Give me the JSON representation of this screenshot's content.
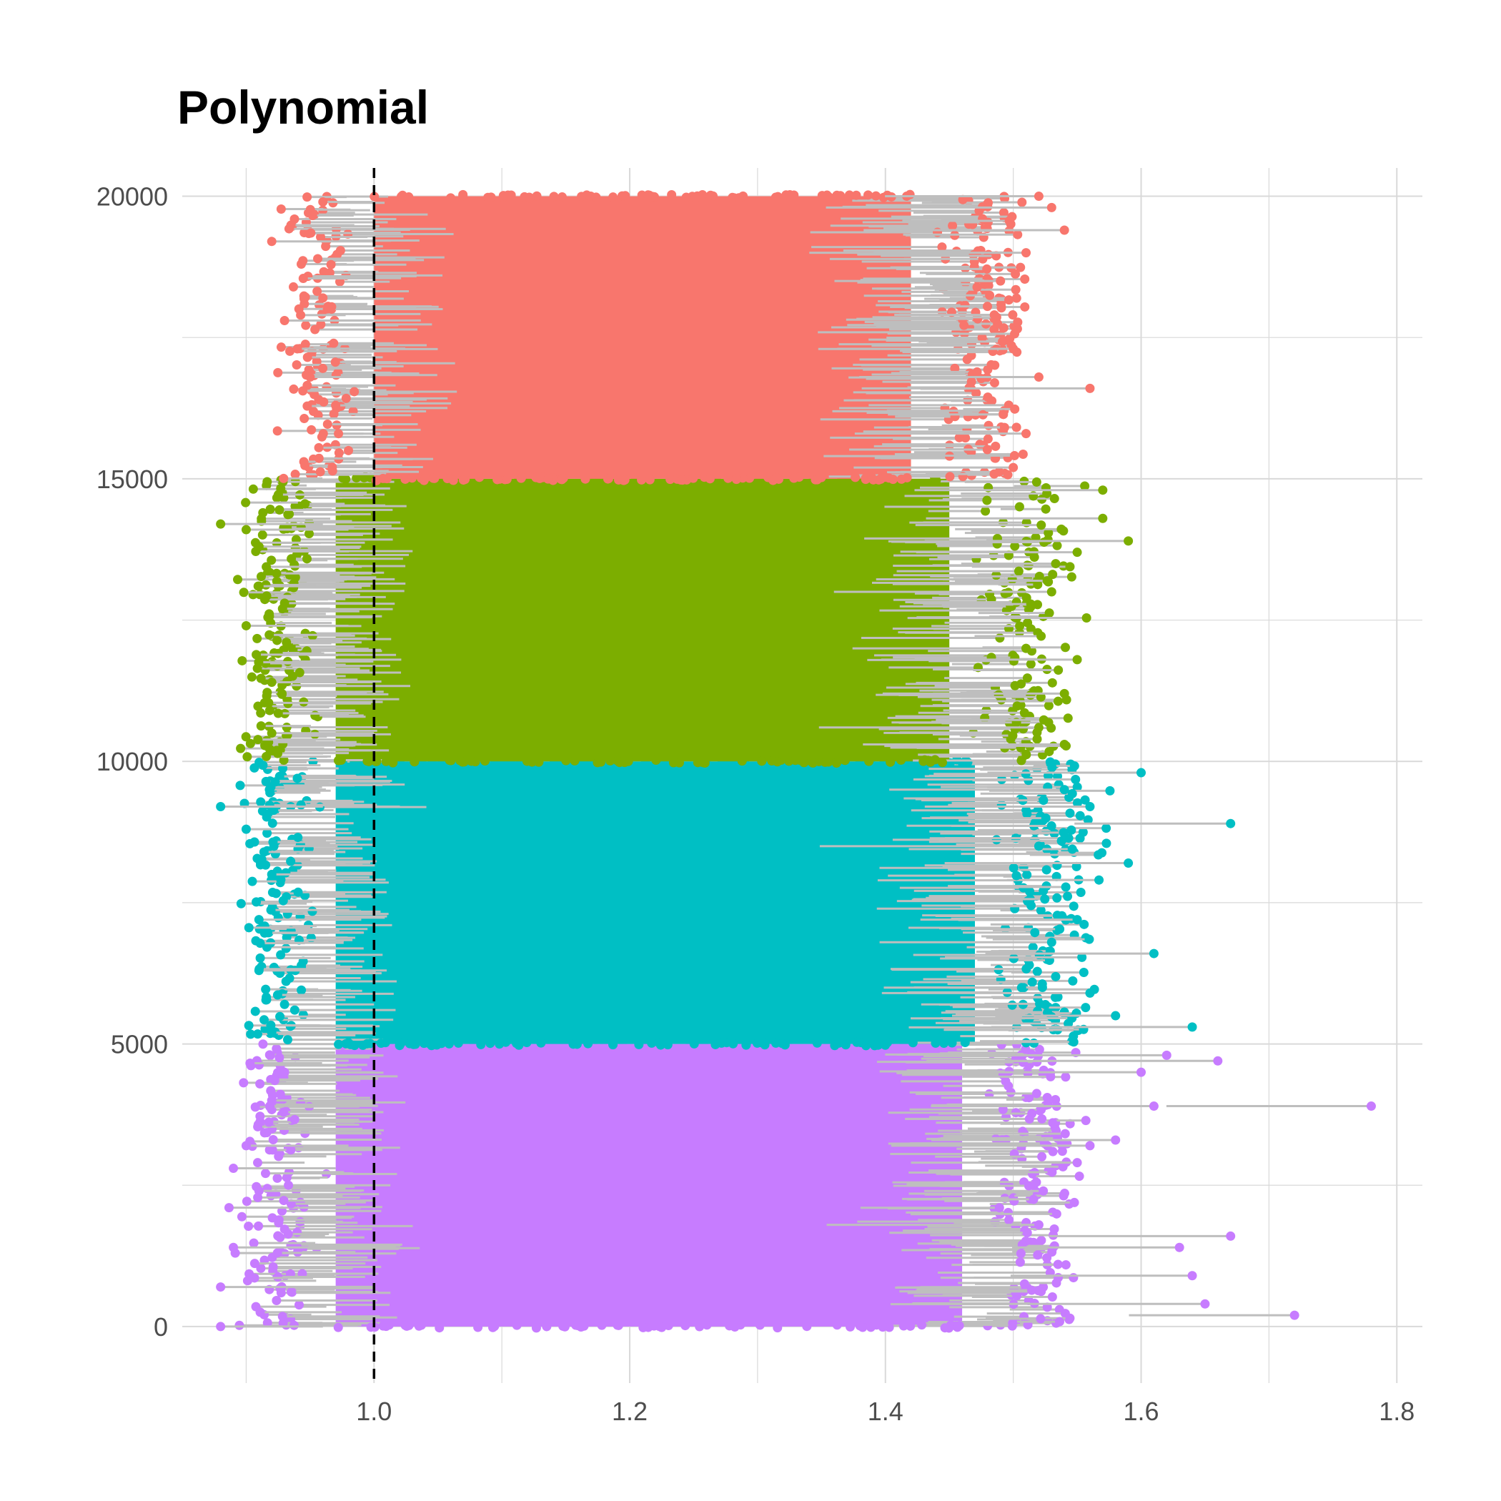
{
  "chart_data": {
    "type": "scatter",
    "subtype": "dumbbell",
    "title": "Polynomial",
    "xlabel": "",
    "ylabel": "",
    "xlim": [
      0.85,
      1.82
    ],
    "ylim": [
      -1000,
      20500
    ],
    "x_ticks": [
      1.0,
      1.2,
      1.4,
      1.6,
      1.8
    ],
    "x_tick_labels": [
      "1.0",
      "1.2",
      "1.4",
      "1.6",
      "1.8"
    ],
    "y_ticks": [
      0,
      5000,
      10000,
      15000,
      20000
    ],
    "y_tick_labels": [
      "0",
      "5000",
      "10000",
      "15000",
      "20000"
    ],
    "grid": true,
    "legend": "none",
    "reference_line": {
      "x": 1.0,
      "style": "dashed",
      "color": "#000000"
    },
    "segment_color": "#bebebe",
    "series": [
      {
        "y_range": [
          0,
          5000
        ],
        "color": "#c77cff",
        "core_x_range": [
          0.97,
          1.46
        ],
        "outliers": [
          [
            0.89,
            2800
          ],
          [
            0.9,
            3200
          ],
          [
            0.91,
            2400
          ],
          [
            0.89,
            1400
          ],
          [
            0.88,
            700
          ],
          [
            0.88,
            0
          ],
          [
            0.92,
            4000
          ],
          [
            0.93,
            4500
          ],
          [
            1.78,
            3900
          ],
          [
            1.72,
            200
          ],
          [
            1.67,
            1600
          ],
          [
            1.66,
            4700
          ],
          [
            1.65,
            400
          ],
          [
            1.63,
            1400
          ],
          [
            1.62,
            4800
          ],
          [
            1.61,
            3900
          ],
          [
            1.58,
            3300
          ],
          [
            1.56,
            3200
          ],
          [
            1.55,
            2900
          ],
          [
            1.52,
            1800
          ],
          [
            1.6,
            4500
          ],
          [
            1.64,
            900
          ]
        ]
      },
      {
        "y_range": [
          5000,
          10000
        ],
        "color": "#00bfc4",
        "core_x_range": [
          0.97,
          1.47
        ],
        "outliers": [
          [
            0.88,
            9200
          ],
          [
            0.9,
            8800
          ],
          [
            0.92,
            8000
          ],
          [
            0.91,
            7200
          ],
          [
            0.91,
            6300
          ],
          [
            0.93,
            5700
          ],
          [
            0.92,
            5200
          ],
          [
            0.94,
            9700
          ],
          [
            1.67,
            8900
          ],
          [
            1.6,
            9800
          ],
          [
            1.64,
            5300
          ],
          [
            1.61,
            6600
          ],
          [
            1.59,
            8200
          ],
          [
            1.56,
            9200
          ],
          [
            1.55,
            7200
          ],
          [
            1.53,
            6800
          ],
          [
            1.56,
            5900
          ],
          [
            1.58,
            5500
          ],
          [
            1.52,
            8500
          ],
          [
            1.54,
            9500
          ]
        ]
      },
      {
        "y_range": [
          10000,
          15000
        ],
        "color": "#7cae00",
        "core_x_range": [
          0.97,
          1.45
        ],
        "outliers": [
          [
            0.88,
            14200
          ],
          [
            0.9,
            14100
          ],
          [
            0.91,
            13800
          ],
          [
            0.91,
            13100
          ],
          [
            0.9,
            12400
          ],
          [
            0.92,
            11400
          ],
          [
            0.92,
            10500
          ],
          [
            0.93,
            12800
          ],
          [
            1.59,
            13900
          ],
          [
            1.57,
            14800
          ],
          [
            1.57,
            14300
          ],
          [
            1.55,
            13700
          ],
          [
            1.53,
            13000
          ],
          [
            1.55,
            11800
          ],
          [
            1.54,
            11200
          ],
          [
            1.54,
            10300
          ],
          [
            1.52,
            10600
          ],
          [
            1.51,
            12000
          ]
        ]
      },
      {
        "y_range": [
          15000,
          20000
        ],
        "color": "#f8766d",
        "core_x_range": [
          1.0,
          1.42
        ],
        "outliers": [
          [
            0.92,
            19200
          ],
          [
            0.93,
            17800
          ],
          [
            0.94,
            17300
          ],
          [
            0.95,
            16800
          ],
          [
            0.96,
            19900
          ],
          [
            0.96,
            18200
          ],
          [
            0.97,
            16300
          ],
          [
            0.98,
            15500
          ],
          [
            1.54,
            19400
          ],
          [
            1.53,
            19800
          ],
          [
            1.56,
            16600
          ],
          [
            1.52,
            20000
          ],
          [
            1.52,
            16800
          ],
          [
            1.51,
            15800
          ],
          [
            1.5,
            15200
          ],
          [
            1.5,
            17300
          ],
          [
            1.49,
            18500
          ],
          [
            1.51,
            19000
          ]
        ]
      }
    ]
  }
}
